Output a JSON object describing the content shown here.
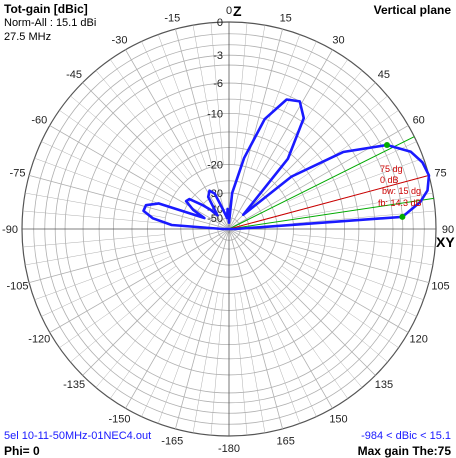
{
  "header": {
    "title": "Tot-gain [dBic]",
    "norm": "Norm-All : 15.1 dBi",
    "freq": "27.5 MHz",
    "plane": "Vertical plane"
  },
  "footer": {
    "filename": "5el 10-11-50MHz-01NEC4.out",
    "phi": "Phi= 0",
    "range": "-984 < dBic < 15.1",
    "maxgain": "Max gain The:75"
  },
  "axis": {
    "z_label": "Z",
    "xy_label": "XY",
    "angle_labels": [
      "-180",
      "-165",
      "-150",
      "-135",
      "-120",
      "-105",
      "-90",
      "-75",
      "-60",
      "-45",
      "-30",
      "-15",
      "0",
      "15",
      "30",
      "45",
      "60",
      "75",
      "90",
      "105",
      "120",
      "135",
      "150",
      "165"
    ],
    "ring_labels": [
      "0",
      "-3",
      "-6",
      "-10",
      "-20",
      "-30",
      "-40",
      "-50"
    ]
  },
  "annotations": {
    "max_angle": "75 dg",
    "zero_db": "0 dB",
    "beamwidth": "bw: 15 dg",
    "front_back": "fb: 14.3 dB"
  },
  "colors": {
    "pattern": "#1a1aff",
    "grid": "#b0b0b0",
    "beamwidth_lines": "#00aa00",
    "max_line": "#cc0000"
  },
  "chart_data": {
    "type": "polar",
    "unit": "dBic",
    "max_gain_dBi": 15.1,
    "angle_range": [
      -180,
      180
    ],
    "max_gain_angle_deg": 75,
    "beamwidth_deg": 15,
    "front_back_dB": 14.3,
    "pattern": [
      {
        "angle": 0,
        "gain": -60
      },
      {
        "angle": 5,
        "gain": -30
      },
      {
        "angle": 12,
        "gain": -18
      },
      {
        "angle": 18,
        "gain": -10
      },
      {
        "angle": 24,
        "gain": -6.5
      },
      {
        "angle": 29,
        "gain": -6
      },
      {
        "angle": 34,
        "gain": -7.5
      },
      {
        "angle": 40,
        "gain": -14
      },
      {
        "angle": 45,
        "gain": -40
      },
      {
        "angle": 50,
        "gain": -16
      },
      {
        "angle": 56,
        "gain": -7
      },
      {
        "angle": 62,
        "gain": -2.5
      },
      {
        "angle": 67,
        "gain": -0.8
      },
      {
        "angle": 71,
        "gain": -0.2
      },
      {
        "angle": 75,
        "gain": 0
      },
      {
        "angle": 79,
        "gain": -0.4
      },
      {
        "angle": 82,
        "gain": -1.2
      },
      {
        "angle": 86,
        "gain": -3
      },
      {
        "angle": 90,
        "gain": -60
      },
      {
        "angle": -90,
        "gain": -60
      },
      {
        "angle": -86,
        "gain": -22
      },
      {
        "angle": -82,
        "gain": -17
      },
      {
        "angle": -78,
        "gain": -14.8
      },
      {
        "angle": -74,
        "gain": -15
      },
      {
        "angle": -70,
        "gain": -17.5
      },
      {
        "angle": -66,
        "gain": -35
      },
      {
        "angle": -62,
        "gain": -28
      },
      {
        "angle": -57,
        "gain": -24
      },
      {
        "angle": -53,
        "gain": -24.5
      },
      {
        "angle": -48,
        "gain": -30
      },
      {
        "angle": -44,
        "gain": -35
      },
      {
        "angle": -40,
        "gain": -42
      },
      {
        "angle": -33,
        "gain": -29
      },
      {
        "angle": -27,
        "gain": -27
      },
      {
        "angle": -22,
        "gain": -29
      },
      {
        "angle": -17,
        "gain": -40
      },
      {
        "angle": -10,
        "gain": -50
      },
      {
        "angle": -4,
        "gain": -40
      },
      {
        "angle": 0,
        "gain": -60
      }
    ]
  }
}
